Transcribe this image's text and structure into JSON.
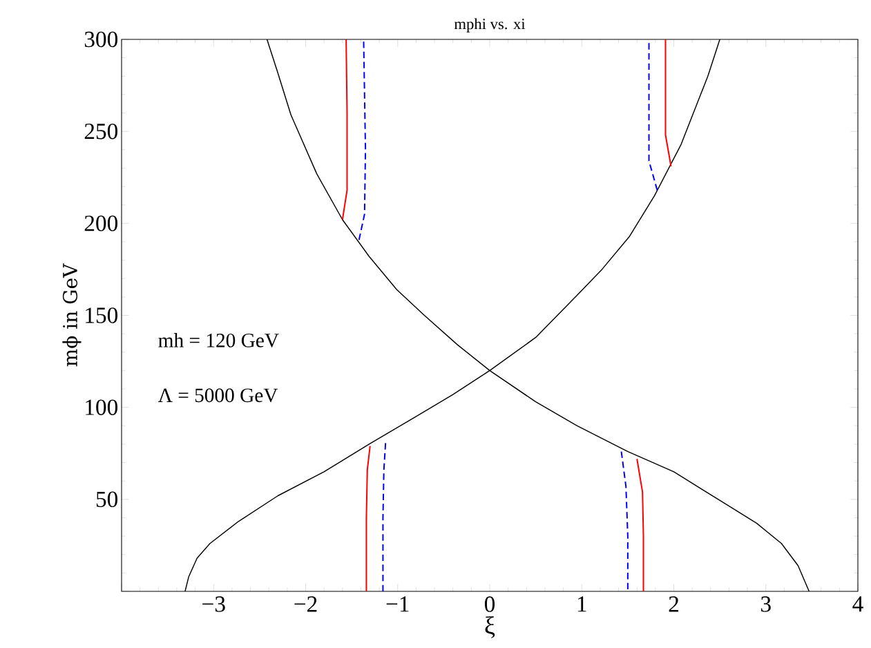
{
  "chart_data": {
    "type": "line",
    "title": "mphi vs. xi",
    "xlabel": "ξ",
    "ylabel": "mϕ in GeV",
    "annotations": [
      "mh = 120 GeV",
      "Λ = 5000 GeV"
    ],
    "xlim": [
      -4,
      4
    ],
    "ylim": [
      0,
      300
    ],
    "xticks": [
      {
        "value": -4,
        "label": null
      },
      {
        "value": -3,
        "label": "−3"
      },
      {
        "value": -2,
        "label": "−2"
      },
      {
        "value": -1,
        "label": "−1"
      },
      0,
      1,
      2,
      3,
      4
    ],
    "yticks": [
      {
        "value": 0,
        "label": null
      },
      50,
      100,
      150,
      200,
      250,
      300
    ],
    "grid": false,
    "marker": "none",
    "series": [
      {
        "color": "#000000",
        "line_style": "solid",
        "x": [
          -2.42,
          -2.31,
          -2.16,
          -1.88,
          -1.6,
          -1.31,
          -1.01,
          -0.71,
          -0.35,
          0,
          0.5,
          0.95,
          1.5,
          2.0,
          2.61,
          2.9,
          3.17,
          3.35,
          3.47
        ],
        "values": [
          300,
          283,
          259,
          227,
          202,
          182,
          164,
          150,
          134,
          120,
          103,
          90,
          76,
          65,
          46,
          37,
          26,
          14,
          0
        ]
      },
      {
        "color": "#000000",
        "line_style": "solid",
        "x": [
          -3.31,
          -3.27,
          -3.18,
          -3.04,
          -2.73,
          -2.3,
          -1.8,
          -1.31,
          -0.8,
          -0.4,
          0,
          0.5,
          0.95,
          1.22,
          1.52,
          1.79,
          2.08,
          2.37,
          2.5
        ],
        "values": [
          0,
          8,
          18,
          26,
          38,
          52,
          65,
          80,
          95,
          107,
          120,
          138,
          161,
          175,
          193,
          215,
          243,
          280,
          300
        ]
      },
      {
        "color": "#ff0000",
        "line_style": "solid",
        "x": [
          -1.6,
          -1.55,
          -1.55,
          -1.56,
          0,
          1.97,
          1.91,
          1.91,
          0,
          -1.34,
          -1.34,
          -1.33,
          -1.3,
          0,
          1.6,
          1.66,
          1.67,
          1.67
        ],
        "values": [
          202,
          218,
          260,
          300,
          null,
          231,
          248,
          300,
          null,
          0,
          40,
          66,
          79,
          null,
          72,
          54,
          30,
          0
        ]
      },
      {
        "color": "#0000ff",
        "line_style": "dashed",
        "x": [
          -1.42,
          -1.36,
          -1.35,
          -1.37,
          0,
          1.82,
          1.73,
          1.73,
          0,
          -1.16,
          -1.16,
          -1.15,
          -1.13,
          0,
          1.43,
          1.48,
          1.5,
          1.5
        ],
        "values": [
          191,
          205,
          240,
          300,
          null,
          218,
          234,
          300,
          null,
          0,
          40,
          66,
          82,
          null,
          76,
          57,
          30,
          0
        ]
      }
    ]
  }
}
